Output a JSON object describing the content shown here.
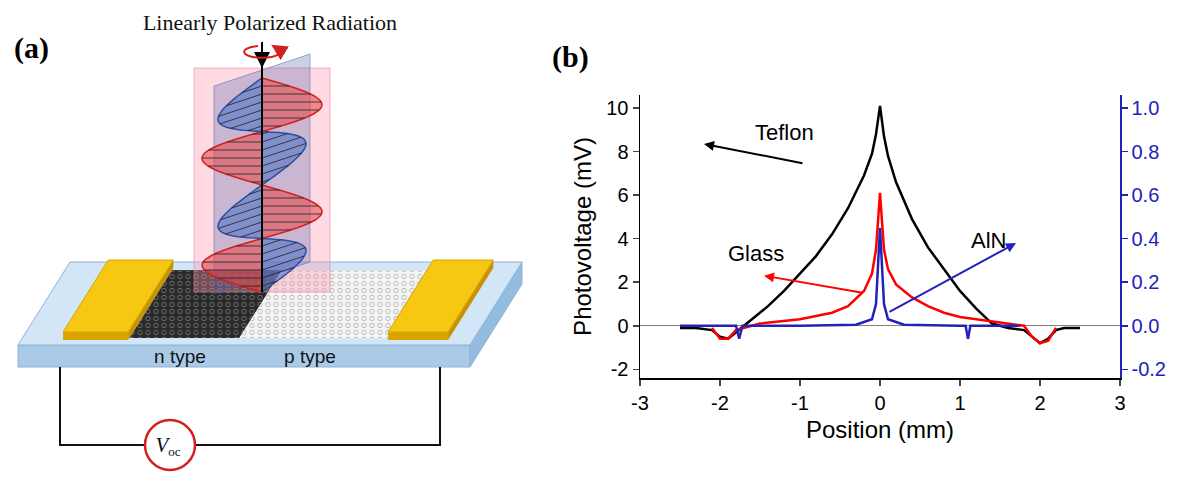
{
  "diagram": {
    "panel_label": "(a)",
    "title": "Linearly Polarized Radiation",
    "regions": [
      "n type",
      "p type"
    ],
    "meter": {
      "symbol": "V",
      "subscript": "oc"
    }
  },
  "chart_data": {
    "type": "line",
    "panel_label": "(b)",
    "x_label": "Position (mm)",
    "y_label": "Photovoltage (mV)",
    "xlim": [
      -3,
      3
    ],
    "xticks": [
      -3,
      -2,
      -1,
      0,
      1,
      2,
      3
    ],
    "ylim": [
      -2.4,
      10.6
    ],
    "yticks": [
      -2,
      0,
      2,
      4,
      6,
      8,
      10
    ],
    "y2lim": [
      -0.24,
      1.06
    ],
    "y2ticks": [
      -0.2,
      {
        "value": 0,
        "label": "0.0"
      },
      0.2,
      0.4,
      0.6,
      0.8,
      {
        "value": 1,
        "label": "1.0"
      }
    ],
    "grid": false,
    "series": [
      {
        "name": "Teflon",
        "color": "#000000",
        "axis": "y",
        "x": [
          -2.5,
          -2.3,
          -2.1,
          -2.0,
          -1.9,
          -1.8,
          -1.7,
          -1.6,
          -1.4,
          -1.2,
          -1.0,
          -0.8,
          -0.6,
          -0.4,
          -0.2,
          -0.1,
          -0.05,
          0,
          0.05,
          0.1,
          0.2,
          0.4,
          0.6,
          0.8,
          1.0,
          1.2,
          1.4,
          1.6,
          1.8,
          1.9,
          2.0,
          2.1,
          2.2,
          2.3,
          2.5
        ],
        "values": [
          -0.1,
          -0.1,
          -0.2,
          -0.5,
          -0.6,
          -0.3,
          0,
          0.3,
          0.9,
          1.6,
          2.4,
          3.2,
          4.2,
          5.4,
          6.9,
          7.9,
          8.8,
          10.1,
          8.7,
          7.8,
          6.6,
          4.9,
          3.6,
          2.6,
          1.6,
          0.8,
          0.1,
          -0.1,
          -0.2,
          -0.5,
          -0.8,
          -0.6,
          -0.2,
          -0.1,
          -0.1
        ]
      },
      {
        "name": "Glass",
        "color": "#ff0000",
        "axis": "y",
        "x": [
          -2.1,
          -2.0,
          -1.9,
          -1.8,
          -1.5,
          -1.0,
          -0.6,
          -0.4,
          -0.2,
          -0.1,
          -0.05,
          0,
          0.05,
          0.1,
          0.2,
          0.4,
          0.6,
          0.8,
          1.0,
          1.4,
          1.8,
          1.9,
          2.0,
          2.1,
          2.2
        ],
        "values": [
          -0.1,
          -0.6,
          -0.6,
          -0.2,
          0.1,
          0.3,
          0.6,
          0.9,
          1.6,
          2.4,
          3.5,
          6.1,
          3.5,
          2.6,
          1.9,
          1.3,
          0.9,
          0.6,
          0.4,
          0.2,
          0.0,
          -0.5,
          -0.8,
          -0.7,
          -0.1
        ]
      },
      {
        "name": "AlN",
        "color": "#2222bb",
        "axis": "y2",
        "x": [
          -2.5,
          -1.8,
          -1.76,
          -1.72,
          -1.0,
          -0.3,
          -0.1,
          -0.05,
          0,
          0.05,
          0.1,
          0.3,
          1.0,
          1.07,
          1.1,
          1.13,
          1.75
        ],
        "values": [
          0,
          0,
          -0.06,
          0,
          0,
          0.005,
          0.03,
          0.1,
          0.45,
          0.1,
          0.03,
          0.005,
          0,
          0,
          -0.06,
          0,
          0
        ]
      }
    ]
  }
}
